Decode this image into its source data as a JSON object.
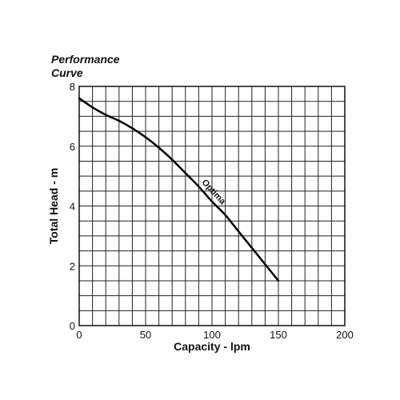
{
  "chart_data": {
    "type": "line",
    "title_line1": "Performance",
    "title_line2": "Curve",
    "xlabel": "Capacity - lpm",
    "ylabel": "Total Head - m",
    "xlim": [
      0,
      200
    ],
    "ylim": [
      0,
      8
    ],
    "x_ticks": [
      0,
      50,
      100,
      150,
      200
    ],
    "y_ticks": [
      0,
      2,
      4,
      6,
      8
    ],
    "grid": true,
    "minor_x_step": 10,
    "minor_y_step": 0.5,
    "series": [
      {
        "name": "Optima",
        "color": "#000000",
        "x": [
          0,
          10,
          20,
          30,
          40,
          50,
          60,
          70,
          80,
          90,
          100,
          110,
          120,
          130,
          140,
          150
        ],
        "y": [
          7.6,
          7.3,
          7.05,
          6.85,
          6.6,
          6.3,
          5.95,
          5.55,
          5.1,
          4.65,
          4.15,
          3.7,
          3.15,
          2.6,
          2.05,
          1.5
        ]
      }
    ]
  }
}
